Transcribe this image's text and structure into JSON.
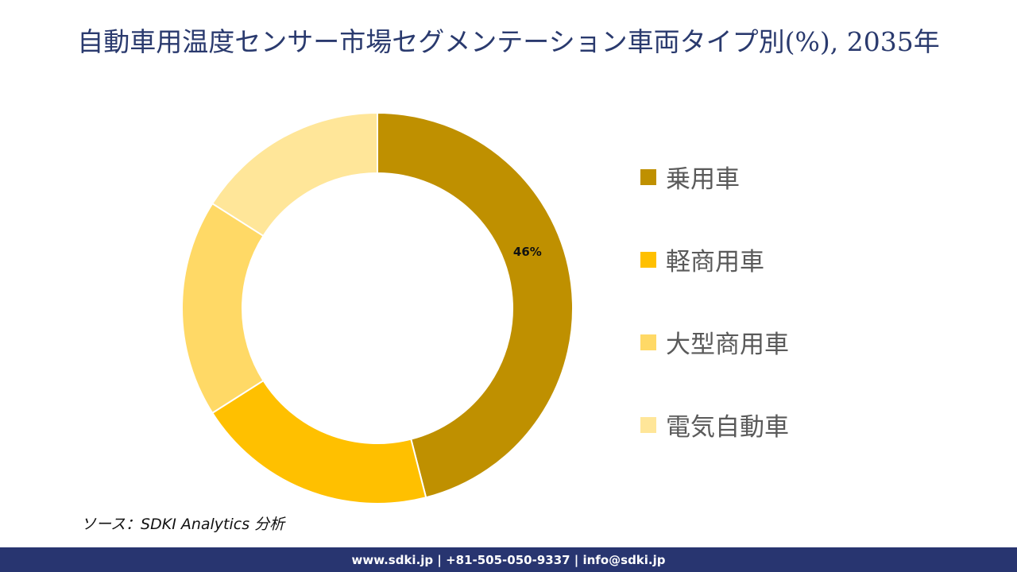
{
  "title": "自動車用温度センサー市場セグメンテーション車両タイプ別(%), 2035年",
  "chart_data": {
    "type": "pie",
    "subtype": "donut",
    "title": "自動車用温度センサー市場セグメンテーション車両タイプ別(%), 2035年",
    "categories": [
      "乗用車",
      "軽商用車",
      "大型商用車",
      "電気自動車"
    ],
    "values": [
      46,
      20,
      18,
      16
    ],
    "unit": "%",
    "colors": [
      "#bf9000",
      "#ffc000",
      "#ffd966",
      "#ffe699"
    ],
    "data_labels": [
      {
        "category": "乗用車",
        "text": "46%"
      }
    ],
    "legend_position": "right",
    "start_angle": 0,
    "direction": "clockwise"
  },
  "legend": {
    "items": [
      {
        "label": "乗用車",
        "color": "#bf9000"
      },
      {
        "label": "軽商用車",
        "color": "#ffc000"
      },
      {
        "label": "大型商用車",
        "color": "#ffd966"
      },
      {
        "label": "電気自動車",
        "color": "#ffe699"
      }
    ]
  },
  "source": "ソース：SDKI Analytics 分析",
  "footer": "www.sdki.jp | +81-505-050-9337 | info@sdki.jp"
}
